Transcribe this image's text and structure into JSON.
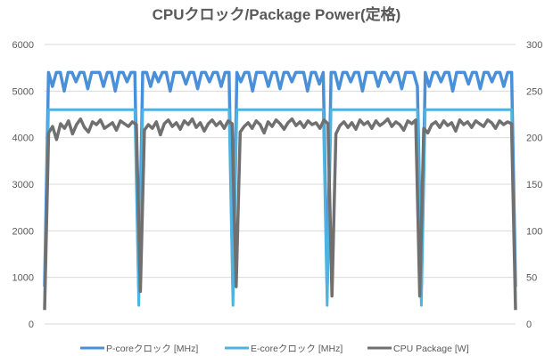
{
  "chart_data": {
    "type": "line",
    "title": "CPUクロック/Package Power(定格)",
    "xlabel": "",
    "ylabel_left": "",
    "ylabel_right": "",
    "ylim_left": [
      0,
      6000
    ],
    "ylim_right": [
      0,
      300
    ],
    "yticks_left": [
      "0",
      "1000",
      "2000",
      "3000",
      "4000",
      "5000",
      "6000"
    ],
    "yticks_right": [
      "0",
      "50",
      "100",
      "150",
      "200",
      "250",
      "300"
    ],
    "grid": true,
    "legend_position": "bottom",
    "colors": {
      "p": "#4a90d9",
      "e": "#4db3e0",
      "pkg": "#707070"
    },
    "series": [
      {
        "name": "P-coreクロック [MHz]",
        "axis": "left",
        "values": [
          800,
          5400,
          5100,
          5400,
          5400,
          5000,
          5400,
          5400,
          5200,
          5400,
          5400,
          5050,
          5400,
          5400,
          5400,
          5100,
          5400,
          5400,
          5000,
          5400,
          5400,
          5200,
          5400,
          5400,
          800,
          5400,
          5400,
          5100,
          5400,
          5200,
          5400,
          5400,
          5000,
          5400,
          5400,
          5400,
          5150,
          5400,
          5400,
          5050,
          5400,
          5400,
          5200,
          5400,
          5400,
          5100,
          5400,
          5400,
          800,
          5400,
          5200,
          5400,
          5400,
          5000,
          5400,
          5400,
          5400,
          5100,
          5400,
          5400,
          5050,
          5400,
          5400,
          5200,
          5400,
          5400,
          5400,
          5000,
          5400,
          5400,
          5150,
          5400,
          800,
          5400,
          5400,
          5050,
          5400,
          5400,
          5200,
          5400,
          5400,
          5000,
          5400,
          5400,
          5400,
          5100,
          5400,
          5400,
          5200,
          5400,
          5400,
          5050,
          5400,
          5400,
          5400,
          5100,
          800,
          5400,
          5100,
          5400,
          5400,
          5200,
          5400,
          5400,
          5000,
          5400,
          5400,
          5400,
          5150,
          5400,
          5400,
          5050,
          5400,
          5400,
          5200,
          5400,
          5400,
          5100,
          5400,
          5400,
          800
        ]
      },
      {
        "name": "E-coreクロック [MHz]",
        "axis": "left",
        "values": [
          400,
          4600,
          4600,
          4600,
          4600,
          4600,
          4600,
          4600,
          4600,
          4600,
          4600,
          4600,
          4600,
          4600,
          4600,
          4600,
          4600,
          4600,
          4600,
          4600,
          4600,
          4600,
          4600,
          4600,
          400,
          4600,
          4600,
          4600,
          4600,
          4600,
          4600,
          4600,
          4600,
          4600,
          4600,
          4600,
          4600,
          4600,
          4600,
          4600,
          4600,
          4600,
          4600,
          4600,
          4600,
          4600,
          4600,
          4600,
          400,
          4600,
          4600,
          4600,
          4600,
          4600,
          4600,
          4600,
          4600,
          4600,
          4600,
          4600,
          4600,
          4600,
          4600,
          4600,
          4600,
          4600,
          4600,
          4600,
          4600,
          4600,
          4600,
          4600,
          400,
          4600,
          4600,
          4600,
          4600,
          4600,
          4600,
          4600,
          4600,
          4600,
          4600,
          4600,
          4600,
          4600,
          4600,
          4600,
          4600,
          4600,
          4600,
          4600,
          4600,
          4600,
          4600,
          4600,
          400,
          4600,
          4600,
          4600,
          4600,
          4600,
          4600,
          4600,
          4600,
          4600,
          4600,
          4600,
          4600,
          4600,
          4600,
          4600,
          4600,
          4600,
          4600,
          4600,
          4600,
          4600,
          4600,
          4600,
          400
        ]
      },
      {
        "name": "CPU Package [W]",
        "axis": "right",
        "values": [
          15,
          205,
          212,
          198,
          215,
          210,
          218,
          204,
          214,
          220,
          211,
          206,
          217,
          214,
          219,
          210,
          213,
          216,
          208,
          218,
          215,
          212,
          217,
          214,
          35,
          208,
          214,
          210,
          217,
          203,
          215,
          219,
          212,
          216,
          209,
          218,
          214,
          220,
          211,
          216,
          207,
          215,
          219,
          213,
          217,
          210,
          218,
          215,
          40,
          206,
          212,
          216,
          210,
          218,
          214,
          205,
          217,
          212,
          219,
          215,
          209,
          216,
          220,
          213,
          217,
          211,
          218,
          214,
          216,
          210,
          219,
          215,
          30,
          204,
          213,
          217,
          211,
          216,
          209,
          219,
          214,
          217,
          210,
          218,
          213,
          216,
          220,
          212,
          217,
          214,
          208,
          218,
          215,
          219,
          30,
          210,
          205,
          214,
          217,
          211,
          218,
          213,
          216,
          207,
          219,
          214,
          217,
          211,
          218,
          215,
          212,
          219,
          216,
          210,
          218,
          214,
          217,
          215,
          15
        ]
      }
    ]
  }
}
